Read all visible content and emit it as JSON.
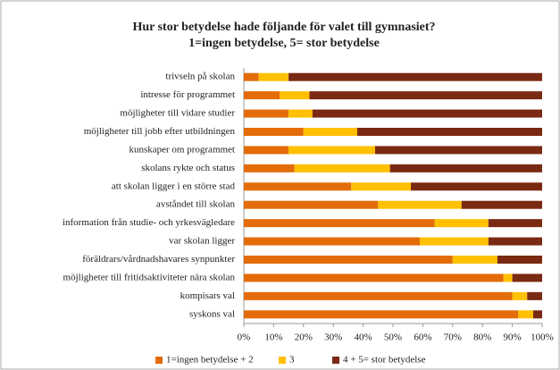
{
  "chart_data": {
    "type": "stacked_barh",
    "title": "Hur stor betydelse hade följande för valet till gymnasiet?",
    "subtitle": "1=ingen betydelse, 5= stor betydelse",
    "categories": [
      "trivseln på skolan",
      "intresse för programmet",
      "möjligheter till vidare studier",
      "möjligheter till jobb efter utbildningen",
      "kunskaper om programmet",
      "skolans rykte och status",
      "att skolan ligger i en större stad",
      "avståndet till skolan",
      "information från studie- och yrkesvägledare",
      "var skolan ligger",
      "föräldrars/vårdnadshavares synpunkter",
      "möjligheter till fritidsaktiviteter nära skolan",
      "kompisars val",
      "syskons val"
    ],
    "series": [
      {
        "name": "1=ingen betydelse + 2",
        "color": "#e36c09",
        "values": [
          5,
          12,
          15,
          20,
          15,
          17,
          36,
          45,
          64,
          59,
          70,
          87,
          90,
          92
        ]
      },
      {
        "name": "3",
        "color": "#ffc000",
        "values": [
          10,
          10,
          8,
          18,
          29,
          32,
          20,
          28,
          18,
          23,
          15,
          3,
          5,
          5
        ]
      },
      {
        "name": "4 + 5= stor betydelse",
        "color": "#7a2a12",
        "values": [
          85,
          78,
          77,
          62,
          56,
          51,
          44,
          27,
          18,
          18,
          15,
          10,
          5,
          3
        ]
      }
    ],
    "xlim": [
      0,
      100
    ],
    "xticks": [
      {
        "value": 0,
        "label": "0%"
      },
      {
        "value": 10,
        "label": "10%"
      },
      {
        "value": 20,
        "label": "20%"
      },
      {
        "value": 30,
        "label": "30%"
      },
      {
        "value": 40,
        "label": "40%"
      },
      {
        "value": 50,
        "label": "50%"
      },
      {
        "value": 60,
        "label": "60%"
      },
      {
        "value": 70,
        "label": "70%"
      },
      {
        "value": 80,
        "label": "80%"
      },
      {
        "value": 90,
        "label": "90%"
      },
      {
        "value": 100,
        "label": "100%"
      }
    ],
    "grid": false,
    "legend": "bottom"
  }
}
